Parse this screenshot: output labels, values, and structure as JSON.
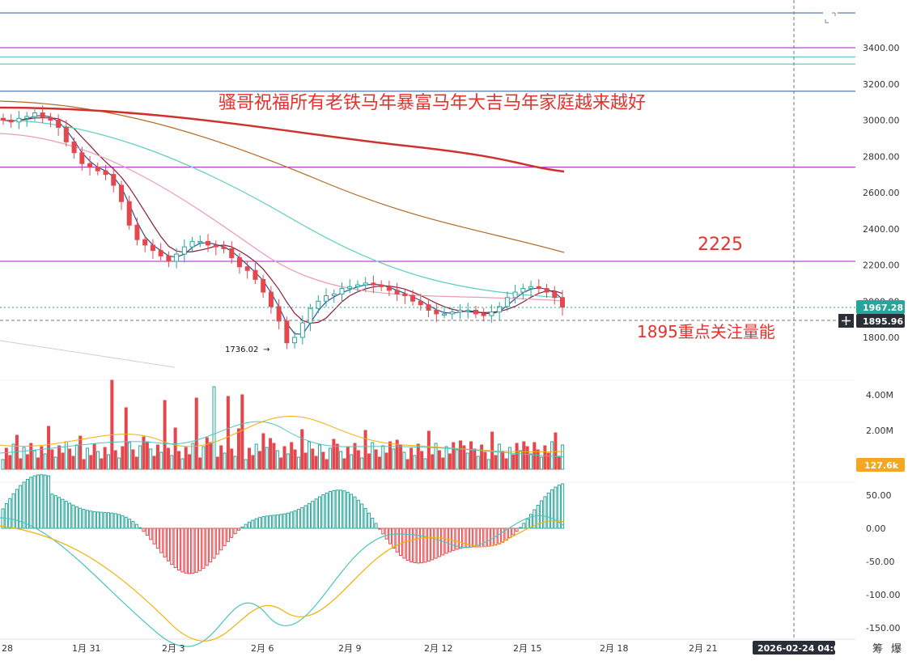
{
  "chart_data": {
    "type": "candlestick",
    "title": "",
    "annotations": {
      "greeting": "骚哥祝福所有老铁马年暴富马年大吉马年家庭越来越好",
      "level_2225": "2225",
      "level_1895": "1895重点关注量能",
      "low_label": "1736.02"
    },
    "price_axis": {
      "ticks": [
        "3400.00",
        "3200.00",
        "3000.00",
        "2800.00",
        "2600.00",
        "2400.00",
        "2200.00",
        "2000.00",
        "1800.00"
      ],
      "range": [
        1740,
        3460
      ]
    },
    "price_badges": {
      "current": "1967.28",
      "crosshair": "1895.96",
      "volume": "127.6k"
    },
    "volume_axis": {
      "ticks": [
        "4.00M",
        "2.00M"
      ]
    },
    "macd_axis": {
      "ticks": [
        "50.00",
        "0.00",
        "-50.00",
        "-100.00",
        "-150.00"
      ]
    },
    "time_axis": {
      "ticks": [
        "28",
        "1月 31",
        "2月 3",
        "2月 6",
        "2月 9",
        "2月 12",
        "2月 15",
        "2月 18",
        "2月 21"
      ],
      "crosshair_time": "2026-02-24 04:00"
    },
    "horizontal_levels": [
      3590,
      3400,
      3350,
      3310,
      3160,
      2740,
      2220
    ],
    "low_price": 1736.02,
    "close_path": [
      3000,
      2990,
      3010,
      3020,
      3040,
      3015,
      3000,
      2960,
      2880,
      2820,
      2760,
      2740,
      2720,
      2700,
      2640,
      2550,
      2420,
      2340,
      2310,
      2280,
      2250,
      2220,
      2260,
      2300,
      2330,
      2330,
      2310,
      2300,
      2290,
      2240,
      2190,
      2170,
      2120,
      2050,
      1970,
      1890,
      1770,
      1800,
      1880,
      1960,
      2000,
      2030,
      2040,
      2070,
      2080,
      2090,
      2100,
      2090,
      2080,
      2060,
      2040,
      2030,
      2000,
      1980,
      1950,
      1930,
      1930,
      1940,
      1950,
      1950,
      1930,
      1920,
      1940,
      1970,
      2020,
      2050,
      2070,
      2080,
      2070,
      2050,
      2020,
      1967
    ],
    "volume_ticks_hidden": "",
    "icons": [
      "plus-icon",
      "expand-icon"
    ],
    "footer_icons": [
      "筹",
      "爆"
    ],
    "colors": {
      "up": "#26a69a",
      "down": "#e5474d",
      "ma_red": "#d0312d",
      "ma_brown": "#b26a24",
      "ma_teal": "#5ccfc2",
      "ma_pink": "#f09ab4",
      "ma_blue": "#2b4fa0",
      "ma_dark": "#8b1c3a",
      "level_purple": "#a020c0",
      "level_teal": "#3ac1b4",
      "level_blue": "#2e5b9a",
      "macd_dif": "#4dc4c0",
      "macd_dea": "#f2b10a",
      "badge_teal": "#26a69a",
      "badge_dark": "#2a2e39",
      "badge_orange": "#f5a623"
    }
  }
}
